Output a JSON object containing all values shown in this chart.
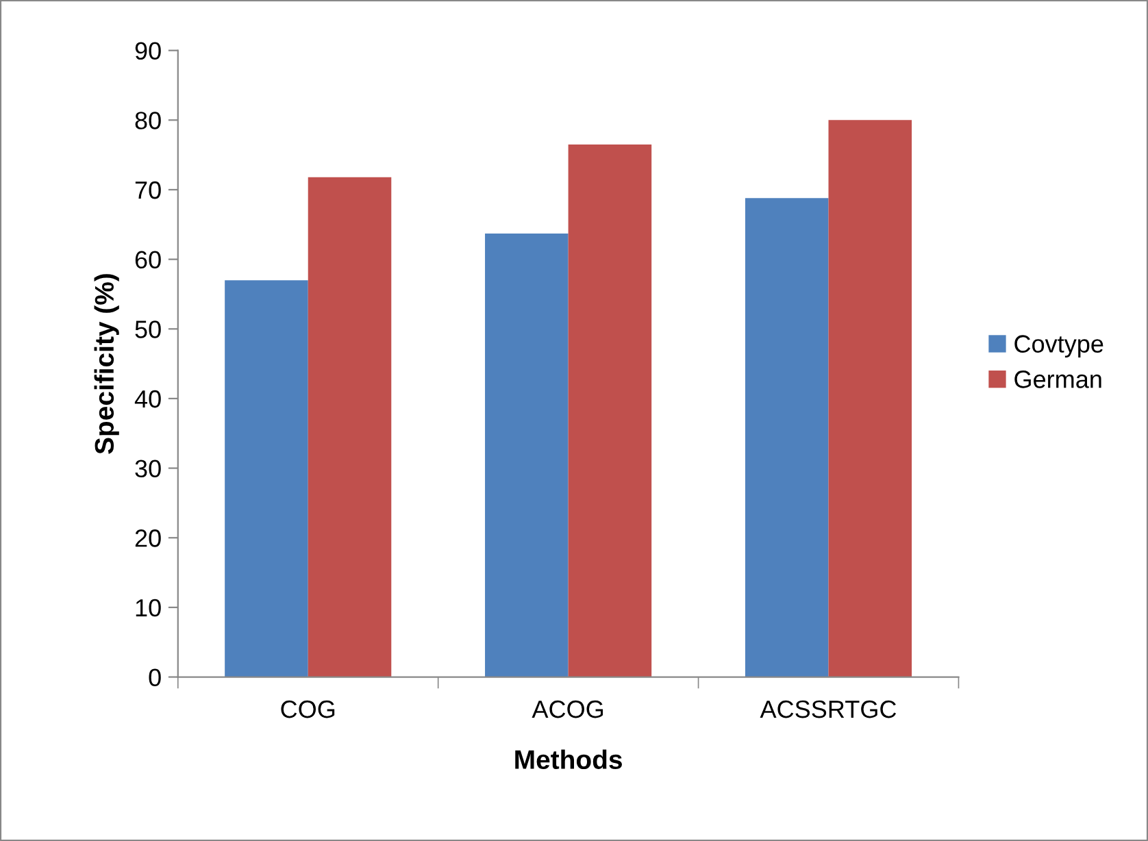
{
  "chart_data": {
    "type": "bar",
    "xlabel": "Methods",
    "ylabel": "Specificity (%)",
    "categories": [
      "COG",
      "ACOG",
      "ACSSRTGC"
    ],
    "series": [
      {
        "name": "Covtype",
        "color": "#4f81bd",
        "values": [
          57,
          63.7,
          68.8
        ]
      },
      {
        "name": "German",
        "color": "#c0504d",
        "values": [
          71.8,
          76.5,
          80
        ]
      }
    ],
    "ylim": [
      0,
      90
    ],
    "yticks": [
      0,
      10,
      20,
      30,
      40,
      50,
      60,
      70,
      80,
      90
    ],
    "grid": false,
    "legend": "right"
  }
}
